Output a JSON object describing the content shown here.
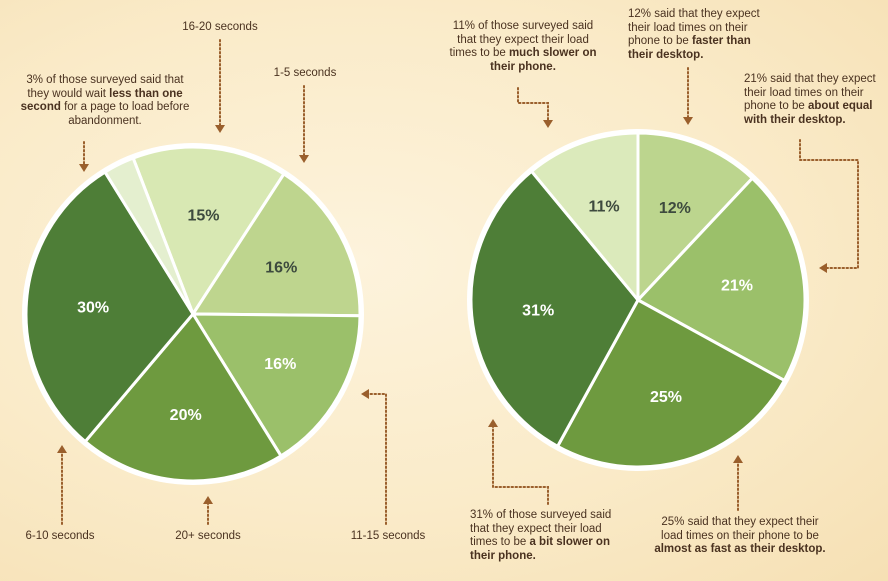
{
  "colors": {
    "background": "#faebc9",
    "pie_border": "#ffffff",
    "annotation_text": "#4a3220",
    "leader_line": "#9a5f2c",
    "label_dark": "#3d4a3e",
    "label_light": "#ffffff"
  },
  "chart_data": [
    {
      "type": "pie",
      "title": "",
      "unit": "%",
      "start": "slightly left of 12 o'clock, clockwise",
      "slices": [
        {
          "name": "16-20 seconds",
          "value": 15,
          "label": "15%",
          "color": "#d8e8b3"
        },
        {
          "name": "1-5 seconds",
          "value": 16,
          "label": "16%",
          "color": "#bed58e"
        },
        {
          "name": "11-15 seconds",
          "value": 16,
          "label": "16%",
          "color": "#9bc06a"
        },
        {
          "name": "20+ seconds",
          "value": 20,
          "label": "20%",
          "color": "#6e9a3f"
        },
        {
          "name": "6-10 seconds",
          "value": 30,
          "label": "30%",
          "color": "#4e7e37"
        },
        {
          "name": "less than one second",
          "value": 3,
          "label": "",
          "color": "#e4efcf"
        }
      ],
      "annotations": [
        {
          "slice": "less than one second",
          "parts": [
            {
              "text": "3% of those surveyed said that they would wait ",
              "bold": false
            },
            {
              "text": "less than one second",
              "bold": true
            },
            {
              "text": " for a page to load before abandonment.",
              "bold": false
            }
          ]
        },
        {
          "slice": "16-20 seconds",
          "text": "16-20 seconds"
        },
        {
          "slice": "1-5 seconds",
          "text": "1-5 seconds"
        },
        {
          "slice": "11-15 seconds",
          "text": "11-15 seconds"
        },
        {
          "slice": "20+ seconds",
          "text": "20+ seconds"
        },
        {
          "slice": "6-10 seconds",
          "text": "6-10 seconds"
        }
      ]
    },
    {
      "type": "pie",
      "title": "",
      "unit": "%",
      "start": "12 o'clock, clockwise",
      "slices": [
        {
          "name": "faster than their desktop",
          "value": 12,
          "label": "12%",
          "color": "#bcd58e"
        },
        {
          "name": "about equal with their desktop",
          "value": 21,
          "label": "21%",
          "color": "#9bc06a"
        },
        {
          "name": "almost as fast as their desktop",
          "value": 25,
          "label": "25%",
          "color": "#6e9a3f"
        },
        {
          "name": "a bit slower on their phone",
          "value": 31,
          "label": "31%",
          "color": "#4e7e37"
        },
        {
          "name": "much slower on their phone",
          "value": 11,
          "label": "11%",
          "color": "#dbeabb"
        }
      ],
      "annotations": [
        {
          "slice": "much slower on their phone",
          "parts": [
            {
              "text": "11% of those surveyed said that they expect their load times to be ",
              "bold": false
            },
            {
              "text": "much slower on their phone.",
              "bold": true
            }
          ]
        },
        {
          "slice": "faster than their desktop",
          "parts": [
            {
              "text": "12% said that they expect their load times on their phone to be ",
              "bold": false
            },
            {
              "text": "faster than their desktop.",
              "bold": true
            }
          ]
        },
        {
          "slice": "about equal with their desktop",
          "parts": [
            {
              "text": "21% said that they expect their load times on their phone to be ",
              "bold": false
            },
            {
              "text": "about equal with their desktop.",
              "bold": true
            }
          ]
        },
        {
          "slice": "a bit slower on their phone",
          "parts": [
            {
              "text": "31% of those surveyed said that they expect their load times to be ",
              "bold": false
            },
            {
              "text": "a bit slower on their phone.",
              "bold": true
            }
          ]
        },
        {
          "slice": "almost as fast as their desktop",
          "parts": [
            {
              "text": "25% said that they expect their load times on their phone to be ",
              "bold": false
            },
            {
              "text": "almost as fast as their desktop.",
              "bold": true
            }
          ]
        }
      ]
    }
  ]
}
